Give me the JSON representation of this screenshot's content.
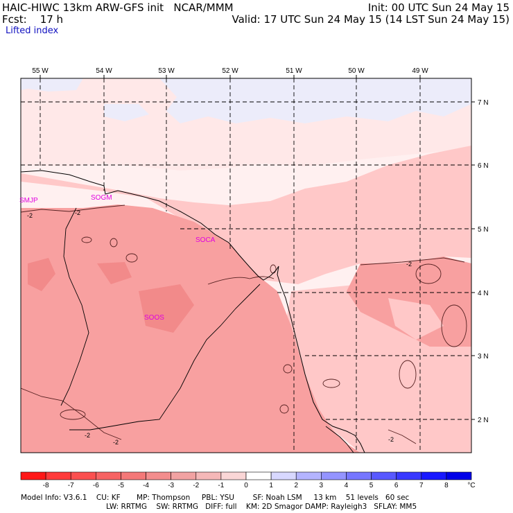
{
  "header": {
    "model": "HAIC-HIWC 13km ARW-GFS init",
    "org": "NCAR/MMM",
    "init": "Init: 00 UTC Sun 24 May 15",
    "fcst_label": "Fcst:",
    "fcst_value": "17 h",
    "valid": "Valid: 17 UTC Sun 24 May 15 (14 LST Sun 24 May 15)",
    "field": "Lifted index"
  },
  "map": {
    "lon_labels": [
      "55 W",
      "54 W",
      "53 W",
      "52 W",
      "51 W",
      "50 W",
      "49 W"
    ],
    "lat_labels": [
      "7 N",
      "6 N",
      "5 N",
      "4 N",
      "3 N",
      "2 N"
    ],
    "stations": [
      {
        "id": "SMJP"
      },
      {
        "id": "SOGM"
      },
      {
        "id": "SOCA"
      },
      {
        "id": "SOOS"
      }
    ],
    "contour_label": "-2",
    "colors": {
      "station_text": "#e000e0",
      "li_-2_-1": "#ffc8c8",
      "li_-3_-2": "#f8a0a0",
      "li_-1_0": "#ffe8e8",
      "li_1": "#ececfa"
    }
  },
  "colorbar": {
    "ticks": [
      "-8",
      "-7",
      "-6",
      "-5",
      "-4",
      "-3",
      "-2",
      "-1",
      "0",
      "1",
      "2",
      "3",
      "4",
      "5",
      "6",
      "7",
      "8"
    ],
    "unit": "°C",
    "colors": [
      "#ff1818",
      "#ff3a3a",
      "#fb4f4f",
      "#f76363",
      "#f47878",
      "#f38d8d",
      "#f2a2a2",
      "#f5b8b8",
      "#fad6d6",
      "#ffffff",
      "#d8d8ff",
      "#b4b4ff",
      "#9494ff",
      "#7676ff",
      "#5858ff",
      "#3838ff",
      "#1818ff",
      "#0000e8"
    ]
  },
  "footer": {
    "line1": "Model Info: V3.6.1    CU: KF       MP: Thompson     PBL: YSU        SF: Noah LSM     13 km    51 levels   60 sec",
    "line2": "LW: RRTMG    SW: RRTMG   DIFF: full    KM: 2D Smagor DAMP: Rayleigh3   SFLAY: MM5"
  }
}
